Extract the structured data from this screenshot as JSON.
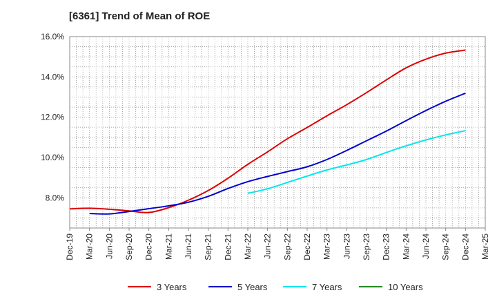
{
  "chart_data": {
    "type": "line",
    "title": "[6361]  Trend of Mean of ROE",
    "xlabel": "",
    "ylabel": "",
    "y_unit": "%",
    "ylim": [
      6.5,
      16.0
    ],
    "y_ticks": [
      "8.0%",
      "10.0%",
      "12.0%",
      "14.0%",
      "16.0%"
    ],
    "x_ticks": [
      "Dec-19",
      "Mar-20",
      "Jun-20",
      "Sep-20",
      "Dec-20",
      "Mar-21",
      "Jun-21",
      "Sep-21",
      "Dec-21",
      "Mar-22",
      "Jun-22",
      "Sep-22",
      "Dec-22",
      "Mar-23",
      "Jun-23",
      "Sep-23",
      "Dec-23",
      "Mar-24",
      "Jun-24",
      "Sep-24",
      "Dec-24",
      "Mar-25"
    ],
    "grid": true,
    "legend_position": "bottom",
    "series": [
      {
        "name": "3 Years",
        "color": "#dd0000",
        "values": [
          7.45,
          7.48,
          7.43,
          7.35,
          7.27,
          7.51,
          7.88,
          8.36,
          8.97,
          9.66,
          10.28,
          10.93,
          11.49,
          12.07,
          12.62,
          13.22,
          13.85,
          14.45,
          14.88,
          15.18,
          15.33,
          null
        ]
      },
      {
        "name": "5 Years",
        "color": "#0000cc",
        "values": [
          null,
          7.22,
          7.2,
          7.32,
          7.46,
          7.6,
          7.78,
          8.07,
          8.46,
          8.8,
          9.06,
          9.3,
          9.54,
          9.9,
          10.35,
          10.83,
          11.31,
          11.83,
          12.33,
          12.79,
          13.19,
          null
        ]
      },
      {
        "name": "7 Years",
        "color": "#00e5ee",
        "values": [
          null,
          null,
          null,
          null,
          null,
          null,
          null,
          null,
          null,
          8.22,
          8.45,
          8.76,
          9.08,
          9.38,
          9.63,
          9.9,
          10.25,
          10.58,
          10.87,
          11.12,
          11.33,
          null
        ]
      },
      {
        "name": "10 Years",
        "color": "#228b22",
        "values": [
          null,
          null,
          null,
          null,
          null,
          null,
          null,
          null,
          null,
          null,
          null,
          null,
          null,
          null,
          null,
          null,
          null,
          null,
          null,
          null,
          null,
          null
        ]
      }
    ]
  }
}
